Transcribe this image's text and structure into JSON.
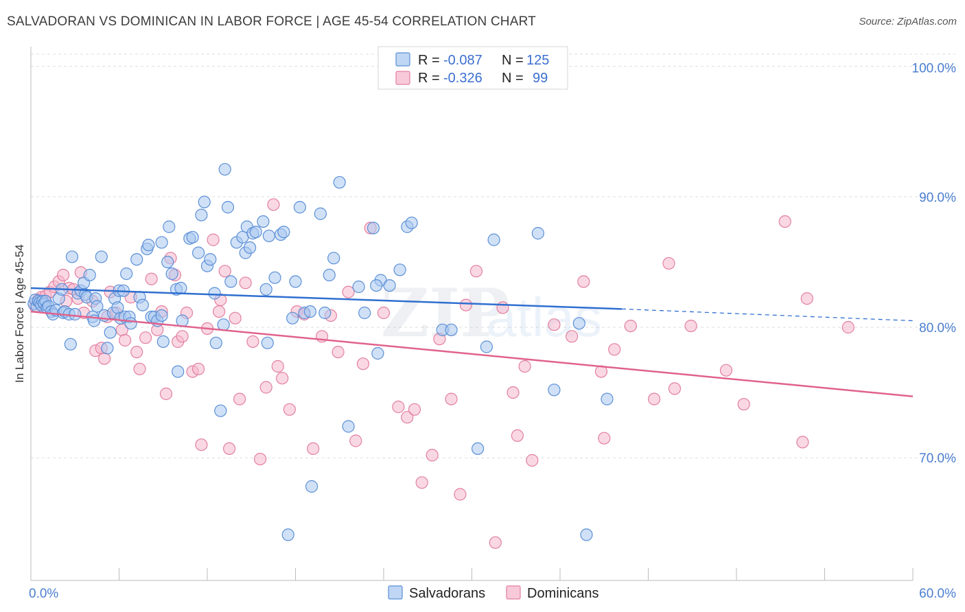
{
  "title": "SALVADORAN VS DOMINICAN IN LABOR FORCE | AGE 45-54 CORRELATION CHART",
  "source": "Source: ZipAtlas.com",
  "watermark": {
    "zip": "ZIP",
    "atlas": "atlas"
  },
  "colors": {
    "salvadoran_fill": "#a9c8f0",
    "salvadoran_stroke": "#5b8fd6",
    "salvadoran_line": "#2f6fd0",
    "dominican_fill": "#f5b8cc",
    "dominican_stroke": "#e27fa0",
    "dominican_line": "#e0628c",
    "tick_label": "#4a7ed0",
    "grid": "#dddddd"
  },
  "legend": {
    "rows": [
      {
        "r_label": "R =",
        "r_value": "-0.087",
        "n_label": "N =",
        "n_value": "125"
      },
      {
        "r_label": "R =",
        "r_value": "-0.326",
        "n_label": "N =",
        "n_value": "99"
      }
    ]
  },
  "chart_data": {
    "type": "scatter",
    "title": "SALVADORAN VS DOMINICAN IN LABOR FORCE | AGE 45-54 CORRELATION CHART",
    "xlabel": "",
    "ylabel": "In Labor Force | Age 45-54",
    "xlim": [
      0,
      60
    ],
    "ylim": [
      60.6,
      101.5
    ],
    "x_tick_labels": [
      "0.0%",
      "60.0%"
    ],
    "y_ticks": [
      70,
      80,
      90,
      100
    ],
    "y_tick_labels": [
      "70.0%",
      "80.0%",
      "90.0%",
      "100.0%"
    ],
    "grid": true,
    "legend_position": "top-center",
    "series": [
      {
        "name": "Salvadorans",
        "r": -0.087,
        "n": 125,
        "trend": {
          "x": [
            0,
            40.2
          ],
          "y": [
            83.0,
            81.4
          ],
          "dashed_x": [
            40.2,
            60
          ],
          "dashed_y": [
            81.4,
            80.5
          ]
        },
        "points": [
          [
            0.2,
            81.8
          ],
          [
            0.3,
            82.1
          ],
          [
            0.4,
            81.6
          ],
          [
            0.5,
            82.0
          ],
          [
            0.6,
            81.9
          ],
          [
            0.7,
            81.7
          ],
          [
            0.8,
            82.0
          ],
          [
            0.9,
            81.8
          ],
          [
            1.0,
            82.0
          ],
          [
            1.1,
            81.5
          ],
          [
            1.2,
            81.6
          ],
          [
            1.4,
            81.2
          ],
          [
            1.5,
            81.0
          ],
          [
            1.7,
            81.3
          ],
          [
            1.9,
            82.2
          ],
          [
            2.1,
            82.9
          ],
          [
            2.2,
            81.1
          ],
          [
            2.3,
            81.2
          ],
          [
            2.6,
            81.0
          ],
          [
            2.7,
            78.7
          ],
          [
            2.8,
            85.4
          ],
          [
            3.0,
            81.0
          ],
          [
            3.2,
            82.6
          ],
          [
            3.4,
            82.8
          ],
          [
            3.6,
            83.4
          ],
          [
            3.7,
            82.5
          ],
          [
            3.8,
            82.3
          ],
          [
            4.0,
            84.0
          ],
          [
            4.2,
            80.8
          ],
          [
            4.3,
            80.5
          ],
          [
            4.4,
            82.2
          ],
          [
            4.5,
            81.6
          ],
          [
            4.8,
            85.4
          ],
          [
            5.0,
            80.9
          ],
          [
            5.2,
            78.4
          ],
          [
            5.4,
            79.6
          ],
          [
            5.6,
            81.1
          ],
          [
            5.7,
            82.2
          ],
          [
            5.9,
            81.5
          ],
          [
            6.0,
            82.8
          ],
          [
            6.1,
            80.7
          ],
          [
            6.3,
            82.8
          ],
          [
            6.4,
            80.8
          ],
          [
            6.5,
            84.1
          ],
          [
            6.7,
            80.8
          ],
          [
            6.8,
            80.3
          ],
          [
            7.2,
            85.2
          ],
          [
            7.4,
            82.3
          ],
          [
            7.6,
            81.7
          ],
          [
            7.9,
            86.0
          ],
          [
            8.0,
            86.3
          ],
          [
            8.2,
            80.8
          ],
          [
            8.4,
            80.8
          ],
          [
            8.6,
            80.5
          ],
          [
            8.9,
            86.5
          ],
          [
            9.0,
            78.9
          ],
          [
            9.3,
            85.0
          ],
          [
            9.4,
            87.7
          ],
          [
            9.6,
            84.1
          ],
          [
            9.9,
            82.9
          ],
          [
            10.0,
            76.6
          ],
          [
            10.2,
            83.0
          ],
          [
            10.3,
            80.5
          ],
          [
            10.8,
            86.8
          ],
          [
            11.0,
            86.9
          ],
          [
            11.4,
            85.7
          ],
          [
            11.6,
            88.6
          ],
          [
            11.8,
            89.6
          ],
          [
            12.0,
            84.7
          ],
          [
            12.2,
            85.2
          ],
          [
            12.5,
            82.6
          ],
          [
            12.6,
            78.8
          ],
          [
            12.9,
            73.6
          ],
          [
            13.1,
            80.2
          ],
          [
            13.2,
            92.1
          ],
          [
            13.4,
            89.2
          ],
          [
            13.6,
            83.5
          ],
          [
            14.0,
            86.5
          ],
          [
            14.4,
            86.9
          ],
          [
            14.6,
            85.7
          ],
          [
            14.7,
            87.7
          ],
          [
            14.9,
            86.1
          ],
          [
            15.1,
            87.2
          ],
          [
            15.3,
            87.3
          ],
          [
            15.8,
            88.1
          ],
          [
            16.0,
            82.9
          ],
          [
            16.2,
            87.0
          ],
          [
            16.6,
            83.8
          ],
          [
            17.0,
            87.1
          ],
          [
            17.2,
            87.3
          ],
          [
            17.8,
            80.7
          ],
          [
            18.0,
            83.5
          ],
          [
            18.3,
            89.2
          ],
          [
            18.6,
            81.1
          ],
          [
            19.0,
            81.2
          ],
          [
            19.7,
            88.7
          ],
          [
            20.0,
            81.1
          ],
          [
            20.3,
            84.0
          ],
          [
            20.6,
            85.3
          ],
          [
            21.0,
            91.1
          ],
          [
            21.6,
            72.4
          ],
          [
            22.3,
            83.1
          ],
          [
            22.7,
            81.1
          ],
          [
            23.3,
            87.6
          ],
          [
            23.6,
            78.0
          ],
          [
            23.8,
            83.6
          ],
          [
            24.4,
            83.2
          ],
          [
            25.1,
            84.4
          ],
          [
            25.6,
            87.7
          ],
          [
            25.9,
            88.0
          ],
          [
            28.0,
            79.8
          ],
          [
            28.6,
            79.8
          ],
          [
            31.0,
            78.5
          ],
          [
            31.5,
            86.7
          ],
          [
            34.5,
            87.2
          ],
          [
            35.6,
            75.2
          ],
          [
            37.3,
            80.3
          ],
          [
            39.2,
            74.5
          ],
          [
            19.1,
            67.8
          ],
          [
            17.5,
            64.1
          ],
          [
            30.4,
            70.7
          ],
          [
            37.8,
            64.1
          ],
          [
            16.1,
            78.8
          ],
          [
            8.9,
            80.9
          ],
          [
            23.5,
            83.2
          ]
        ]
      },
      {
        "name": "Dominicans",
        "r": -0.326,
        "n": 99,
        "trend": {
          "x": [
            0,
            60
          ],
          "y": [
            81.2,
            74.7
          ]
        },
        "points": [
          [
            0.3,
            81.6
          ],
          [
            0.5,
            82.1
          ],
          [
            0.7,
            82.3
          ],
          [
            1.0,
            82.4
          ],
          [
            1.3,
            82.7
          ],
          [
            1.6,
            83.1
          ],
          [
            1.9,
            83.5
          ],
          [
            2.2,
            84.0
          ],
          [
            2.4,
            82.0
          ],
          [
            2.6,
            83.0
          ],
          [
            2.9,
            82.9
          ],
          [
            3.2,
            82.2
          ],
          [
            3.4,
            84.2
          ],
          [
            3.6,
            81.1
          ],
          [
            4.2,
            82.0
          ],
          [
            4.4,
            78.2
          ],
          [
            4.8,
            78.4
          ],
          [
            5.0,
            77.6
          ],
          [
            5.2,
            80.8
          ],
          [
            5.4,
            82.7
          ],
          [
            5.8,
            81.1
          ],
          [
            6.2,
            79.8
          ],
          [
            6.4,
            79.0
          ],
          [
            6.8,
            82.3
          ],
          [
            7.2,
            78.1
          ],
          [
            7.4,
            76.8
          ],
          [
            7.8,
            79.2
          ],
          [
            8.2,
            83.7
          ],
          [
            8.6,
            79.8
          ],
          [
            8.9,
            81.2
          ],
          [
            9.2,
            74.9
          ],
          [
            9.5,
            85.3
          ],
          [
            9.8,
            84.0
          ],
          [
            10.0,
            78.9
          ],
          [
            10.3,
            79.3
          ],
          [
            10.6,
            81.1
          ],
          [
            11.0,
            76.6
          ],
          [
            11.4,
            76.8
          ],
          [
            11.6,
            71.0
          ],
          [
            12.0,
            79.9
          ],
          [
            12.4,
            86.7
          ],
          [
            12.8,
            81.2
          ],
          [
            13.2,
            84.3
          ],
          [
            13.5,
            70.7
          ],
          [
            13.9,
            80.7
          ],
          [
            14.2,
            74.5
          ],
          [
            14.6,
            83.4
          ],
          [
            15.1,
            78.9
          ],
          [
            15.6,
            69.9
          ],
          [
            16.0,
            75.4
          ],
          [
            16.5,
            89.4
          ],
          [
            16.8,
            77.0
          ],
          [
            17.1,
            76.1
          ],
          [
            17.6,
            73.7
          ],
          [
            18.1,
            81.2
          ],
          [
            18.6,
            81.0
          ],
          [
            19.2,
            70.7
          ],
          [
            19.8,
            79.3
          ],
          [
            20.4,
            80.9
          ],
          [
            20.9,
            78.1
          ],
          [
            21.6,
            82.7
          ],
          [
            22.1,
            71.3
          ],
          [
            22.6,
            77.2
          ],
          [
            23.1,
            87.6
          ],
          [
            24.0,
            81.1
          ],
          [
            25.0,
            73.9
          ],
          [
            25.6,
            73.1
          ],
          [
            26.1,
            73.7
          ],
          [
            26.6,
            68.1
          ],
          [
            27.3,
            70.2
          ],
          [
            27.8,
            79.1
          ],
          [
            28.6,
            74.5
          ],
          [
            29.2,
            67.2
          ],
          [
            29.6,
            81.7
          ],
          [
            30.3,
            84.3
          ],
          [
            31.6,
            63.5
          ],
          [
            32.1,
            81.5
          ],
          [
            32.8,
            75.0
          ],
          [
            33.1,
            71.7
          ],
          [
            33.6,
            77.0
          ],
          [
            34.1,
            69.8
          ],
          [
            35.6,
            80.2
          ],
          [
            36.8,
            79.3
          ],
          [
            37.6,
            83.5
          ],
          [
            38.8,
            76.6
          ],
          [
            39.0,
            71.5
          ],
          [
            39.7,
            78.3
          ],
          [
            40.8,
            80.1
          ],
          [
            42.4,
            74.5
          ],
          [
            43.4,
            84.9
          ],
          [
            43.8,
            75.3
          ],
          [
            44.9,
            80.1
          ],
          [
            47.3,
            76.7
          ],
          [
            48.5,
            74.1
          ],
          [
            51.3,
            88.1
          ],
          [
            52.5,
            71.2
          ],
          [
            52.8,
            82.2
          ],
          [
            55.6,
            80.0
          ],
          [
            12.9,
            82.1
          ]
        ]
      }
    ]
  },
  "bottom_legend": [
    {
      "label": "Salvadorans"
    },
    {
      "label": "Dominicans"
    }
  ]
}
